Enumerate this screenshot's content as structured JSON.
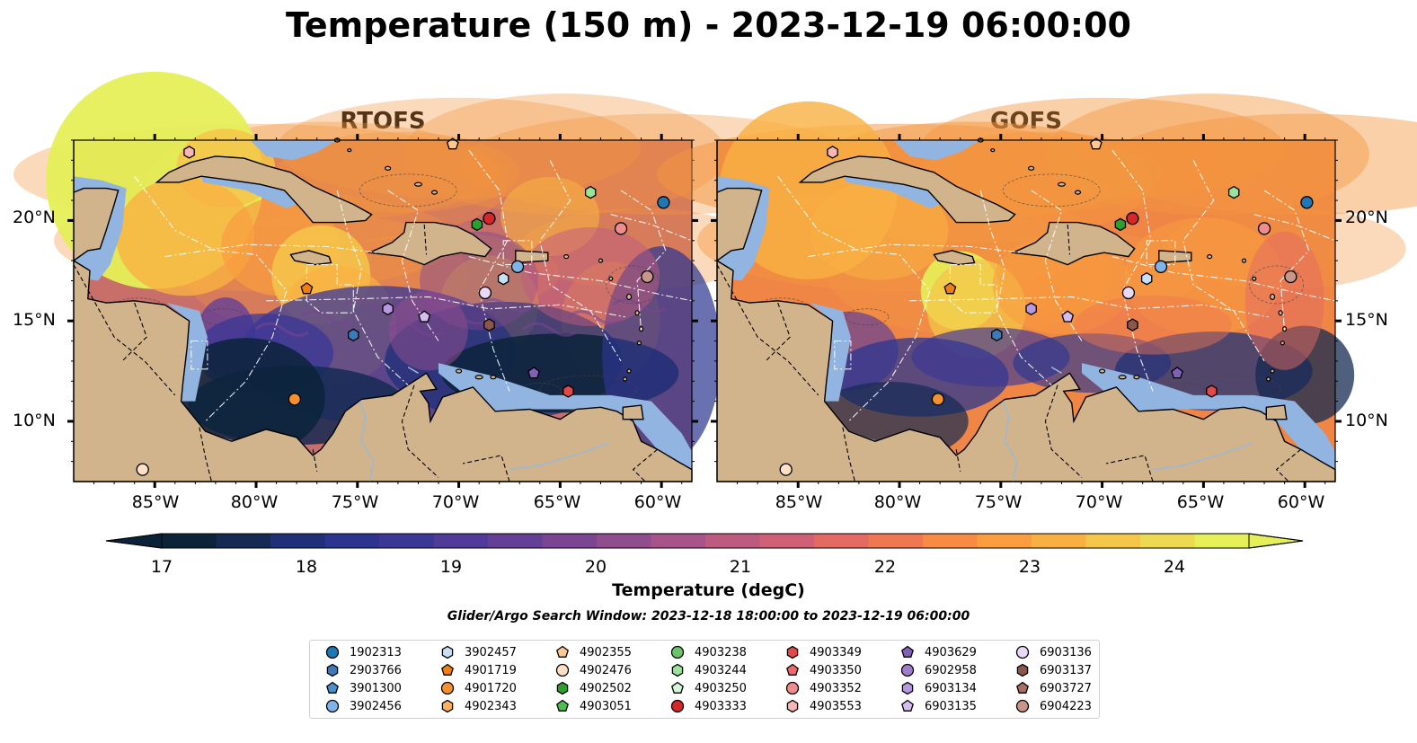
{
  "title": "Temperature (150 m) - 2023-12-19 06:00:00",
  "panels": [
    {
      "title": "RTOFS",
      "variant": "rtofs"
    },
    {
      "title": "GOFS",
      "variant": "gofs"
    }
  ],
  "axes": {
    "lon_ticks": [
      "85°W",
      "80°W",
      "75°W",
      "70°W",
      "65°W",
      "60°W"
    ],
    "lat_ticks": [
      "20°N",
      "15°N",
      "10°N"
    ],
    "lon_values": [
      -85,
      -80,
      -75,
      -70,
      -65,
      -60
    ],
    "lat_values": [
      20,
      15,
      10
    ],
    "lon_range": [
      -89,
      -58.5
    ],
    "lat_range": [
      7,
      24
    ]
  },
  "colorbar": {
    "label": "Temperature (degC)",
    "ticks": [
      "17",
      "18",
      "19",
      "20",
      "21",
      "22",
      "23",
      "24"
    ],
    "tick_values": [
      17,
      18,
      19,
      20,
      21,
      22,
      23,
      24
    ],
    "range": [
      17,
      24.5
    ],
    "extend": "both",
    "colors": [
      "#0b2339",
      "#142a52",
      "#1f3078",
      "#2b3590",
      "#3a3797",
      "#503b98",
      "#643f96",
      "#7a4692",
      "#8f4d8e",
      "#a75289",
      "#bd5a80",
      "#d06075",
      "#e26a63",
      "#ef7852",
      "#f78a44",
      "#f99d3f",
      "#f9b042",
      "#f4c64a",
      "#ecdb52",
      "#e5ef57"
    ]
  },
  "search_window": "Glider/Argo Search Window: 2023-12-18 18:00:00 to 2023-12-19 06:00:00",
  "palette": {
    "land": "#d2b48c",
    "shelf": "#91b4e0",
    "warm": "#f39640",
    "cool": "#2e2d78"
  },
  "floats": [
    {
      "id": "1902313",
      "marker": "circle",
      "color": "#1f77b4",
      "lon": -59.9,
      "lat": 20.9
    },
    {
      "id": "2903766",
      "marker": "hexagon",
      "color": "#3c7ab8",
      "lon": -75.2,
      "lat": 14.3
    },
    {
      "id": "3901300",
      "marker": "pentagon",
      "color": "#4a8fce",
      "lon": null,
      "lat": null
    },
    {
      "id": "3902456",
      "marker": "circle",
      "color": "#7fb4e9",
      "lon": -67.1,
      "lat": 17.7
    },
    {
      "id": "3902457",
      "marker": "hexagon",
      "color": "#c7e0f7",
      "lon": -67.8,
      "lat": 17.1
    },
    {
      "id": "4901719",
      "marker": "pentagon",
      "color": "#f07f0f",
      "lon": -77.5,
      "lat": 16.6
    },
    {
      "id": "4901720",
      "marker": "circle",
      "color": "#f6902c",
      "lon": -78.1,
      "lat": 11.1
    },
    {
      "id": "4902343",
      "marker": "hexagon",
      "color": "#ffb061",
      "lon": null,
      "lat": null
    },
    {
      "id": "4902355",
      "marker": "pentagon",
      "color": "#ffc890",
      "lon": -70.3,
      "lat": 23.8
    },
    {
      "id": "4902476",
      "marker": "circle",
      "color": "#ffe0c4",
      "lon": -85.6,
      "lat": 7.6
    },
    {
      "id": "4902502",
      "marker": "hexagon",
      "color": "#2ca02c",
      "lon": -69.1,
      "lat": 19.8
    },
    {
      "id": "4903051",
      "marker": "pentagon",
      "color": "#4cbf4c",
      "lon": null,
      "lat": null
    },
    {
      "id": "4903238",
      "marker": "circle",
      "color": "#6ac46a",
      "lon": null,
      "lat": null
    },
    {
      "id": "4903244",
      "marker": "hexagon",
      "color": "#9ae39a",
      "lon": -63.5,
      "lat": 21.4
    },
    {
      "id": "4903250",
      "marker": "pentagon",
      "color": "#d6f5d6",
      "lon": null,
      "lat": null
    },
    {
      "id": "4903333",
      "marker": "circle",
      "color": "#d62728",
      "lon": -68.5,
      "lat": 20.1
    },
    {
      "id": "4903349",
      "marker": "hexagon",
      "color": "#e04a4a",
      "lon": -64.6,
      "lat": 11.5
    },
    {
      "id": "4903350",
      "marker": "pentagon",
      "color": "#ee6a6a",
      "lon": null,
      "lat": null
    },
    {
      "id": "4903352",
      "marker": "circle",
      "color": "#f28c8c",
      "lon": -62.0,
      "lat": 19.6
    },
    {
      "id": "4903553",
      "marker": "hexagon",
      "color": "#f8b6b6",
      "lon": -83.3,
      "lat": 23.4
    },
    {
      "id": "4903629",
      "marker": "pentagon",
      "color": "#8060b8",
      "lon": -66.3,
      "lat": 12.4
    },
    {
      "id": "6902958",
      "marker": "circle",
      "color": "#a07ccb",
      "lon": null,
      "lat": null
    },
    {
      "id": "6903134",
      "marker": "hexagon",
      "color": "#b898e0",
      "lon": -73.5,
      "lat": 15.6
    },
    {
      "id": "6903135",
      "marker": "pentagon",
      "color": "#d4bdf0",
      "lon": -71.7,
      "lat": 15.2
    },
    {
      "id": "6903136",
      "marker": "circle",
      "color": "#ead8f7",
      "lon": -68.7,
      "lat": 16.4
    },
    {
      "id": "6903137",
      "marker": "hexagon",
      "color": "#8c564b",
      "lon": -68.5,
      "lat": 14.8
    },
    {
      "id": "6903727",
      "marker": "pentagon",
      "color": "#a9705f",
      "lon": null,
      "lat": null
    },
    {
      "id": "6904223",
      "marker": "circle",
      "color": "#c9968a",
      "lon": -60.7,
      "lat": 17.2
    }
  ]
}
